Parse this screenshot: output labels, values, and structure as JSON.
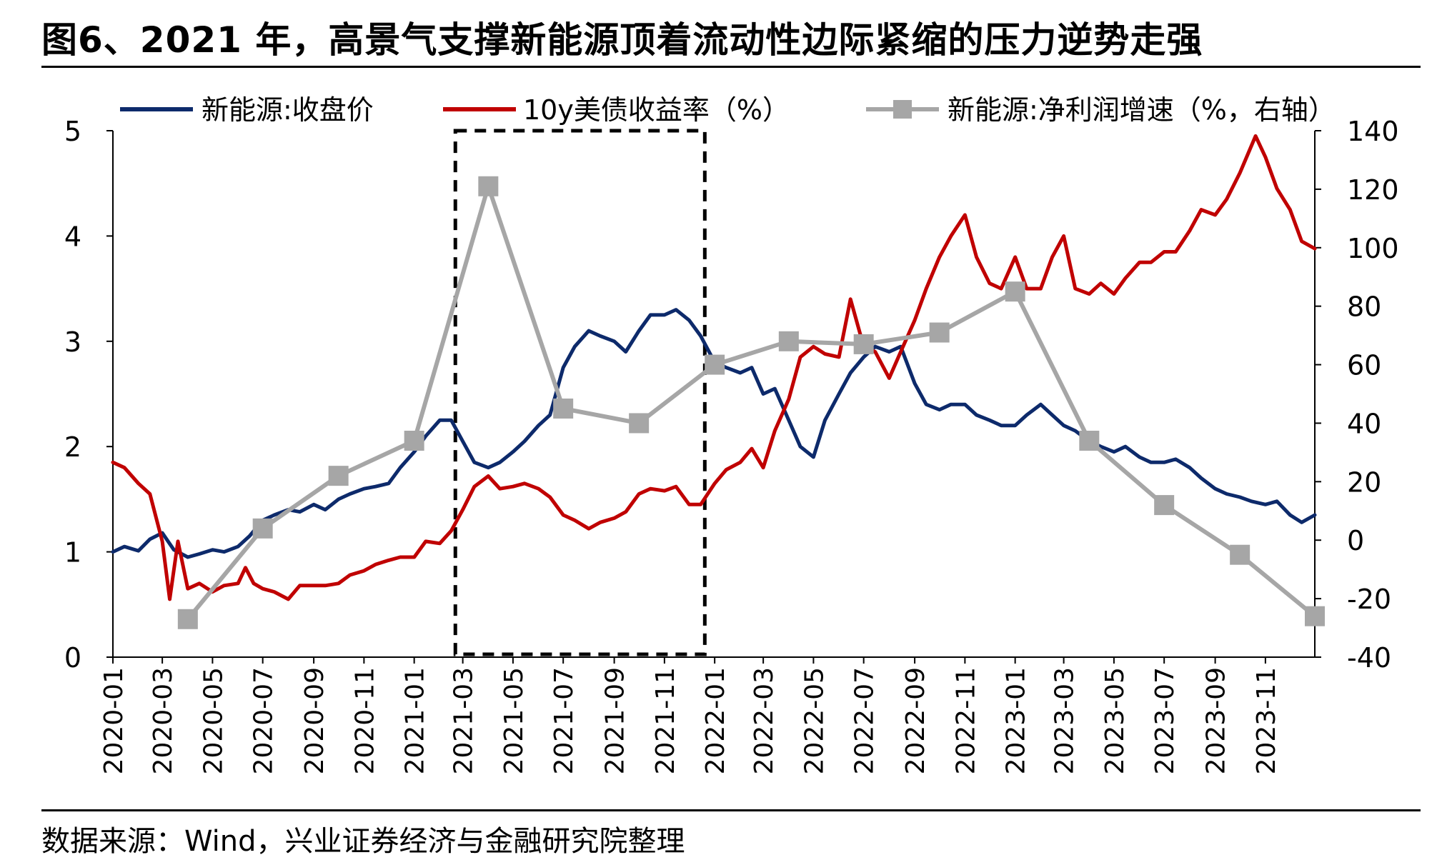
{
  "title": "图6、2021 年，高景气支撑新能源顶着流动性边际紧缩的压力逆势走强",
  "source": "数据来源：Wind，兴业证券经济与金融研究院整理",
  "chart_data": {
    "type": "line",
    "x_range": [
      "2020-01",
      "2023-12"
    ],
    "x_ticks": [
      "2020-01",
      "2020-03",
      "2020-05",
      "2020-07",
      "2020-09",
      "2020-11",
      "2021-01",
      "2021-03",
      "2021-05",
      "2021-07",
      "2021-09",
      "2021-11",
      "2022-01",
      "2022-03",
      "2022-05",
      "2022-07",
      "2022-09",
      "2022-11",
      "2023-01",
      "2023-03",
      "2023-05",
      "2023-07",
      "2023-09",
      "2023-11"
    ],
    "y_left": {
      "ylim": [
        0,
        5
      ],
      "ticks": [
        "0",
        "1",
        "2",
        "3",
        "4",
        "5"
      ]
    },
    "y_right": {
      "ylim": [
        -40,
        140
      ],
      "ticks": [
        "-40",
        "-20",
        "0",
        "20",
        "40",
        "60",
        "80",
        "100",
        "120",
        "140"
      ]
    },
    "highlight_box": {
      "x_start": "2021-02-20",
      "x_end": "2021-12-20",
      "y_bottom": 0,
      "y_top": 5,
      "style": "dashed"
    },
    "series": [
      {
        "name": "新能源:收盘价",
        "axis": "left",
        "color": "#0d2a6b",
        "points": [
          [
            "2020-01-01",
            1.0
          ],
          [
            "2020-01-15",
            1.05
          ],
          [
            "2020-02-01",
            1.01
          ],
          [
            "2020-02-15",
            1.12
          ],
          [
            "2020-03-01",
            1.18
          ],
          [
            "2020-03-15",
            1.02
          ],
          [
            "2020-04-01",
            0.95
          ],
          [
            "2020-04-15",
            0.98
          ],
          [
            "2020-05-01",
            1.02
          ],
          [
            "2020-05-15",
            1.0
          ],
          [
            "2020-06-01",
            1.05
          ],
          [
            "2020-06-15",
            1.15
          ],
          [
            "2020-07-01",
            1.3
          ],
          [
            "2020-07-15",
            1.35
          ],
          [
            "2020-08-01",
            1.4
          ],
          [
            "2020-08-15",
            1.38
          ],
          [
            "2020-09-01",
            1.45
          ],
          [
            "2020-09-15",
            1.4
          ],
          [
            "2020-10-01",
            1.5
          ],
          [
            "2020-10-15",
            1.55
          ],
          [
            "2020-11-01",
            1.6
          ],
          [
            "2020-11-15",
            1.62
          ],
          [
            "2020-12-01",
            1.65
          ],
          [
            "2020-12-15",
            1.8
          ],
          [
            "2021-01-01",
            1.95
          ],
          [
            "2021-01-15",
            2.1
          ],
          [
            "2021-02-01",
            2.25
          ],
          [
            "2021-02-15",
            2.25
          ],
          [
            "2021-03-01",
            2.05
          ],
          [
            "2021-03-15",
            1.85
          ],
          [
            "2021-04-01",
            1.8
          ],
          [
            "2021-04-15",
            1.85
          ],
          [
            "2021-05-01",
            1.95
          ],
          [
            "2021-05-15",
            2.05
          ],
          [
            "2021-06-01",
            2.2
          ],
          [
            "2021-06-15",
            2.3
          ],
          [
            "2021-07-01",
            2.75
          ],
          [
            "2021-07-15",
            2.95
          ],
          [
            "2021-08-01",
            3.1
          ],
          [
            "2021-08-15",
            3.05
          ],
          [
            "2021-09-01",
            3.0
          ],
          [
            "2021-09-15",
            2.9
          ],
          [
            "2021-10-01",
            3.1
          ],
          [
            "2021-10-15",
            3.25
          ],
          [
            "2021-11-01",
            3.25
          ],
          [
            "2021-11-15",
            3.3
          ],
          [
            "2021-12-01",
            3.2
          ],
          [
            "2021-12-15",
            3.05
          ],
          [
            "2022-01-01",
            2.8
          ],
          [
            "2022-01-15",
            2.75
          ],
          [
            "2022-02-01",
            2.7
          ],
          [
            "2022-02-15",
            2.75
          ],
          [
            "2022-03-01",
            2.5
          ],
          [
            "2022-03-15",
            2.55
          ],
          [
            "2022-04-01",
            2.25
          ],
          [
            "2022-04-15",
            2.0
          ],
          [
            "2022-05-01",
            1.9
          ],
          [
            "2022-05-15",
            2.25
          ],
          [
            "2022-06-01",
            2.5
          ],
          [
            "2022-06-15",
            2.7
          ],
          [
            "2022-07-01",
            2.85
          ],
          [
            "2022-07-15",
            2.95
          ],
          [
            "2022-08-01",
            2.9
          ],
          [
            "2022-08-15",
            2.95
          ],
          [
            "2022-09-01",
            2.6
          ],
          [
            "2022-09-15",
            2.4
          ],
          [
            "2022-10-01",
            2.35
          ],
          [
            "2022-10-15",
            2.4
          ],
          [
            "2022-11-01",
            2.4
          ],
          [
            "2022-11-15",
            2.3
          ],
          [
            "2022-12-01",
            2.25
          ],
          [
            "2022-12-15",
            2.2
          ],
          [
            "2023-01-01",
            2.2
          ],
          [
            "2023-01-15",
            2.3
          ],
          [
            "2023-02-01",
            2.4
          ],
          [
            "2023-02-15",
            2.3
          ],
          [
            "2023-03-01",
            2.2
          ],
          [
            "2023-03-15",
            2.15
          ],
          [
            "2023-04-01",
            2.05
          ],
          [
            "2023-04-15",
            2.0
          ],
          [
            "2023-05-01",
            1.95
          ],
          [
            "2023-05-15",
            2.0
          ],
          [
            "2023-06-01",
            1.9
          ],
          [
            "2023-06-15",
            1.85
          ],
          [
            "2023-07-01",
            1.85
          ],
          [
            "2023-07-15",
            1.88
          ],
          [
            "2023-08-01",
            1.8
          ],
          [
            "2023-08-15",
            1.7
          ],
          [
            "2023-09-01",
            1.6
          ],
          [
            "2023-09-15",
            1.55
          ],
          [
            "2023-10-01",
            1.52
          ],
          [
            "2023-10-15",
            1.48
          ],
          [
            "2023-11-01",
            1.45
          ],
          [
            "2023-11-15",
            1.48
          ],
          [
            "2023-12-01",
            1.35
          ],
          [
            "2023-12-15",
            1.28
          ],
          [
            "2023-12-31",
            1.35
          ]
        ]
      },
      {
        "name": "10y美债收益率（%）",
        "axis": "left",
        "color": "#c00000",
        "points": [
          [
            "2020-01-01",
            1.85
          ],
          [
            "2020-01-15",
            1.8
          ],
          [
            "2020-02-01",
            1.65
          ],
          [
            "2020-02-15",
            1.55
          ],
          [
            "2020-03-01",
            1.1
          ],
          [
            "2020-03-10",
            0.55
          ],
          [
            "2020-03-20",
            1.1
          ],
          [
            "2020-04-01",
            0.65
          ],
          [
            "2020-04-15",
            0.7
          ],
          [
            "2020-05-01",
            0.62
          ],
          [
            "2020-05-15",
            0.68
          ],
          [
            "2020-06-01",
            0.7
          ],
          [
            "2020-06-10",
            0.85
          ],
          [
            "2020-06-20",
            0.7
          ],
          [
            "2020-07-01",
            0.65
          ],
          [
            "2020-07-15",
            0.62
          ],
          [
            "2020-08-01",
            0.55
          ],
          [
            "2020-08-15",
            0.68
          ],
          [
            "2020-09-01",
            0.68
          ],
          [
            "2020-09-15",
            0.68
          ],
          [
            "2020-10-01",
            0.7
          ],
          [
            "2020-10-15",
            0.78
          ],
          [
            "2020-11-01",
            0.82
          ],
          [
            "2020-11-15",
            0.88
          ],
          [
            "2020-12-01",
            0.92
          ],
          [
            "2020-12-15",
            0.95
          ],
          [
            "2021-01-01",
            0.95
          ],
          [
            "2021-01-15",
            1.1
          ],
          [
            "2021-02-01",
            1.08
          ],
          [
            "2021-02-15",
            1.2
          ],
          [
            "2021-03-01",
            1.4
          ],
          [
            "2021-03-15",
            1.62
          ],
          [
            "2021-04-01",
            1.72
          ],
          [
            "2021-04-15",
            1.6
          ],
          [
            "2021-05-01",
            1.62
          ],
          [
            "2021-05-15",
            1.65
          ],
          [
            "2021-06-01",
            1.6
          ],
          [
            "2021-06-15",
            1.52
          ],
          [
            "2021-07-01",
            1.35
          ],
          [
            "2021-07-15",
            1.3
          ],
          [
            "2021-08-01",
            1.22
          ],
          [
            "2021-08-15",
            1.28
          ],
          [
            "2021-09-01",
            1.32
          ],
          [
            "2021-09-15",
            1.38
          ],
          [
            "2021-10-01",
            1.55
          ],
          [
            "2021-10-15",
            1.6
          ],
          [
            "2021-11-01",
            1.58
          ],
          [
            "2021-11-15",
            1.62
          ],
          [
            "2021-12-01",
            1.45
          ],
          [
            "2021-12-15",
            1.45
          ],
          [
            "2022-01-01",
            1.65
          ],
          [
            "2022-01-15",
            1.78
          ],
          [
            "2022-02-01",
            1.85
          ],
          [
            "2022-02-15",
            1.98
          ],
          [
            "2022-03-01",
            1.8
          ],
          [
            "2022-03-15",
            2.15
          ],
          [
            "2022-04-01",
            2.45
          ],
          [
            "2022-04-15",
            2.85
          ],
          [
            "2022-05-01",
            2.95
          ],
          [
            "2022-05-15",
            2.88
          ],
          [
            "2022-06-01",
            2.85
          ],
          [
            "2022-06-15",
            3.4
          ],
          [
            "2022-07-01",
            2.95
          ],
          [
            "2022-07-15",
            2.9
          ],
          [
            "2022-08-01",
            2.65
          ],
          [
            "2022-08-15",
            2.9
          ],
          [
            "2022-09-01",
            3.2
          ],
          [
            "2022-09-15",
            3.5
          ],
          [
            "2022-10-01",
            3.8
          ],
          [
            "2022-10-15",
            4.0
          ],
          [
            "2022-11-01",
            4.2
          ],
          [
            "2022-11-15",
            3.8
          ],
          [
            "2022-12-01",
            3.55
          ],
          [
            "2022-12-15",
            3.5
          ],
          [
            "2023-01-01",
            3.8
          ],
          [
            "2023-01-15",
            3.5
          ],
          [
            "2023-02-01",
            3.5
          ],
          [
            "2023-02-15",
            3.8
          ],
          [
            "2023-03-01",
            4.0
          ],
          [
            "2023-03-15",
            3.5
          ],
          [
            "2023-04-01",
            3.45
          ],
          [
            "2023-04-15",
            3.55
          ],
          [
            "2023-05-01",
            3.45
          ],
          [
            "2023-05-15",
            3.6
          ],
          [
            "2023-06-01",
            3.75
          ],
          [
            "2023-06-15",
            3.75
          ],
          [
            "2023-07-01",
            3.85
          ],
          [
            "2023-07-15",
            3.85
          ],
          [
            "2023-08-01",
            4.05
          ],
          [
            "2023-08-15",
            4.25
          ],
          [
            "2023-09-01",
            4.2
          ],
          [
            "2023-09-15",
            4.35
          ],
          [
            "2023-10-01",
            4.6
          ],
          [
            "2023-10-20",
            4.95
          ],
          [
            "2023-11-01",
            4.75
          ],
          [
            "2023-11-15",
            4.45
          ],
          [
            "2023-12-01",
            4.25
          ],
          [
            "2023-12-15",
            3.95
          ],
          [
            "2023-12-31",
            3.88
          ]
        ]
      },
      {
        "name": "新能源:净利润增速（%，右轴）",
        "axis": "right",
        "color": "#a6a6a6",
        "marker": "square",
        "points": [
          [
            "2020-04-01",
            -27
          ],
          [
            "2020-07-01",
            4
          ],
          [
            "2020-10-01",
            22
          ],
          [
            "2021-01-01",
            34
          ],
          [
            "2021-04-01",
            121
          ],
          [
            "2021-07-01",
            45
          ],
          [
            "2021-10-01",
            40
          ],
          [
            "2022-01-01",
            60
          ],
          [
            "2022-04-01",
            68
          ],
          [
            "2022-07-01",
            67
          ],
          [
            "2022-10-01",
            71
          ],
          [
            "2023-01-01",
            85
          ],
          [
            "2023-04-01",
            34
          ],
          [
            "2023-07-01",
            12
          ],
          [
            "2023-10-01",
            -5
          ],
          [
            "2023-12-31",
            -26
          ]
        ]
      }
    ]
  }
}
